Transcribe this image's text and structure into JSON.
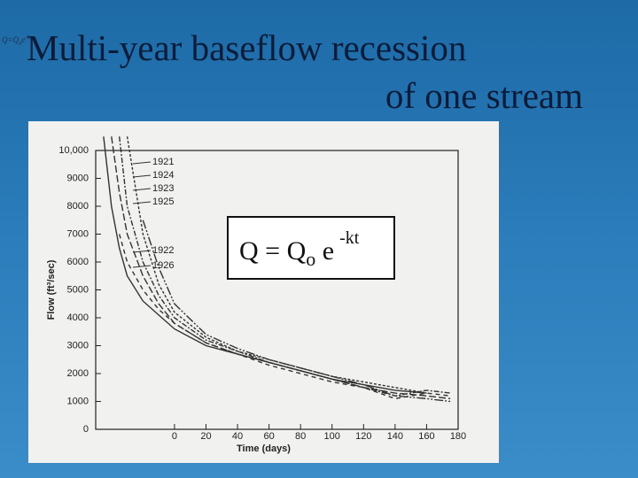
{
  "slide": {
    "title_lines": [
      "Multi-year baseflow recession",
      "of one stream"
    ],
    "corner_formula": {
      "text": "Q=Q",
      "subscript": "0",
      "base": "e",
      "superscript": "-kt"
    }
  },
  "chart_data": {
    "type": "line",
    "xlabel": "Time (days)",
    "ylabel": "Flow (ft³/sec)",
    "formula": {
      "text": "Q = Q",
      "subscript": "o",
      "base": "e",
      "superscript": "-kt"
    },
    "x": [
      -45,
      -40,
      -35,
      -30,
      -20,
      -10,
      0,
      20,
      40,
      60,
      80,
      100,
      120,
      140,
      160,
      175
    ],
    "series": [
      {
        "name": "1921",
        "color": "#333333",
        "dash": "none",
        "values": [
          10500,
          8000,
          6500,
          5500,
          4600,
          4100,
          3600,
          3000,
          2700,
          2400,
          2100,
          1800,
          1600,
          1400,
          1300,
          null
        ]
      },
      {
        "name": "1924",
        "color": "#333333",
        "dash": "8,3",
        "values": [
          null,
          10500,
          8500,
          7000,
          5500,
          4500,
          3800,
          3100,
          2700,
          2400,
          2100,
          1800,
          1500,
          1300,
          1200,
          1100
        ]
      },
      {
        "name": "1923",
        "color": "#333333",
        "dash": "6,2,2,2",
        "values": [
          null,
          null,
          10500,
          8000,
          6000,
          4800,
          4000,
          3200,
          2800,
          2400,
          2100,
          1800,
          1500,
          1200,
          1400,
          1300
        ]
      },
      {
        "name": "1925",
        "color": "#333333",
        "dash": "3,2",
        "values": [
          null,
          null,
          null,
          10500,
          7000,
          5200,
          4200,
          3300,
          2800,
          2500,
          2200,
          1900,
          1700,
          1500,
          1300,
          null
        ]
      },
      {
        "name": "1922",
        "color": "#333333",
        "dash": "10,2,2,2,2,2",
        "values": [
          null,
          null,
          null,
          null,
          7500,
          5800,
          4500,
          3400,
          2900,
          2500,
          2200,
          1900,
          1600,
          1200,
          1100,
          1000
        ]
      },
      {
        "name": "1926",
        "color": "#333333",
        "dash": "5,4",
        "values": [
          null,
          null,
          7000,
          6000,
          5000,
          4300,
          3800,
          3100,
          2700,
          2300,
          2000,
          1700,
          1500,
          1100,
          1300,
          1200
        ]
      }
    ],
    "xlim": [
      -50,
      180
    ],
    "ylim": [
      0,
      10000
    ],
    "xticks": [
      0,
      20,
      40,
      60,
      80,
      100,
      120,
      140,
      160,
      180
    ],
    "yticks": [
      0,
      1000,
      2000,
      3000,
      4000,
      5000,
      6000,
      7000,
      8000,
      9000,
      {
        "value": 10000,
        "label": "10,000"
      }
    ]
  }
}
